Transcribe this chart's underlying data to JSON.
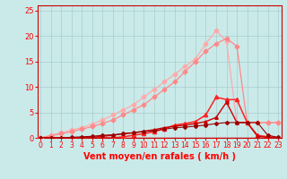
{
  "title": "",
  "xlabel": "Vent moyen/en rafales ( km/h )",
  "bg_color": "#caeaea",
  "grid_color": "#aacccc",
  "x_values": [
    0,
    1,
    2,
    3,
    4,
    5,
    6,
    7,
    8,
    9,
    10,
    11,
    12,
    13,
    14,
    15,
    16,
    17,
    18,
    19,
    20,
    21,
    22,
    23
  ],
  "series": [
    {
      "color": "#ffaaaa",
      "marker": "D",
      "markersize": 2.5,
      "linewidth": 0.9,
      "y": [
        0,
        0.5,
        1.0,
        1.5,
        2.0,
        2.7,
        3.5,
        4.5,
        5.5,
        6.5,
        8.0,
        9.5,
        11.0,
        12.5,
        14.0,
        15.5,
        18.5,
        21.0,
        19.0,
        3.0,
        3.0,
        3.0,
        3.0,
        3.0
      ]
    },
    {
      "color": "#ff8888",
      "marker": "D",
      "markersize": 2.5,
      "linewidth": 0.9,
      "y": [
        0,
        0.4,
        0.8,
        1.2,
        1.7,
        2.2,
        2.8,
        3.5,
        4.5,
        5.5,
        6.5,
        8.0,
        9.5,
        11.0,
        13.0,
        15.0,
        17.0,
        18.5,
        19.5,
        18.0,
        3.0,
        3.0,
        3.0,
        3.0
      ]
    },
    {
      "color": "#ff2222",
      "marker": "^",
      "markersize": 3,
      "linewidth": 1.1,
      "y": [
        0,
        0,
        0,
        0,
        0,
        0,
        0,
        0,
        0.2,
        0.5,
        0.8,
        1.2,
        1.8,
        2.5,
        2.8,
        3.2,
        4.5,
        8.0,
        7.5,
        7.5,
        3.0,
        0.5,
        0.2,
        0
      ]
    },
    {
      "color": "#cc0000",
      "marker": "^",
      "markersize": 2.5,
      "linewidth": 1.0,
      "y": [
        0,
        0,
        0,
        0,
        0,
        0.1,
        0.3,
        0.5,
        0.8,
        1.0,
        1.3,
        1.6,
        2.0,
        2.3,
        2.5,
        2.8,
        3.2,
        4.0,
        7.0,
        3.0,
        3.0,
        0.3,
        0.1,
        0
      ]
    },
    {
      "color": "#990000",
      "marker": "D",
      "markersize": 2,
      "linewidth": 0.8,
      "y": [
        0,
        0,
        0,
        0.1,
        0.2,
        0.3,
        0.5,
        0.6,
        0.8,
        1.0,
        1.2,
        1.4,
        1.7,
        2.0,
        2.1,
        2.3,
        2.5,
        2.8,
        3.0,
        3.0,
        3.0,
        3.0,
        0.5,
        0.1
      ]
    }
  ],
  "xlim": [
    -0.3,
    23.3
  ],
  "ylim": [
    0,
    26
  ],
  "yticks": [
    0,
    5,
    10,
    15,
    20,
    25
  ],
  "xticks": [
    0,
    1,
    2,
    3,
    4,
    5,
    6,
    7,
    8,
    9,
    10,
    11,
    12,
    13,
    14,
    15,
    16,
    17,
    18,
    19,
    20,
    21,
    22,
    23
  ],
  "tick_color": "#ff0000",
  "label_color": "#ff0000",
  "axis_color": "#cc0000"
}
